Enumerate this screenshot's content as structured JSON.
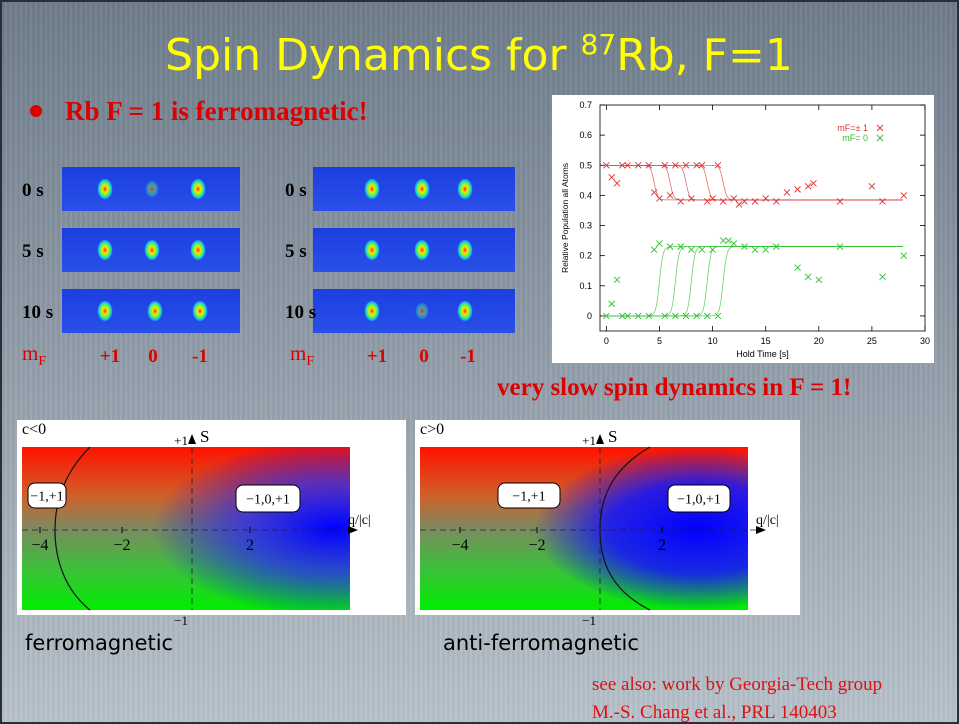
{
  "title": {
    "main": "Spin Dynamics for ",
    "isotope": "87",
    "rest": "Rb, F=1"
  },
  "bullet": "Rb F = 1 is ferromagnetic!",
  "images": [
    {
      "times": [
        "0 s",
        "5 s",
        "10 s"
      ],
      "mf_symbol": "m",
      "mf_sub": "F",
      "mf_values": [
        "+1",
        "0",
        "-1"
      ]
    },
    {
      "times": [
        "0 s",
        "5 s",
        "10 s"
      ],
      "mf_symbol": "m",
      "mf_sub": "F",
      "mf_values": [
        "+1",
        "0",
        "-1"
      ]
    }
  ],
  "plot": {
    "type": "scatter",
    "ylabel": "Relative Population all Atoms",
    "xlabel": "Hold Time [s]",
    "xlim": [
      -0.6,
      30
    ],
    "ylim": [
      -0.05,
      0.7
    ],
    "xticks": [
      0,
      5,
      10,
      15,
      20,
      25,
      30
    ],
    "yticks": [
      0,
      0.1,
      0.2,
      0.3,
      0.4,
      0.5,
      0.6,
      0.7
    ],
    "series": [
      {
        "name": "mF=± 1",
        "color": "#e03030",
        "x": [
          0,
          0.5,
          1,
          1.5,
          2,
          3,
          4,
          4.5,
          5,
          5.5,
          6,
          6.5,
          7,
          7.5,
          8,
          8.5,
          9,
          9.5,
          10,
          10.5,
          11,
          12,
          12.5,
          13,
          14,
          15,
          16,
          17,
          18,
          19,
          19.5,
          22,
          25,
          26,
          28
        ],
        "values": [
          0.5,
          0.46,
          0.44,
          0.5,
          0.5,
          0.5,
          0.5,
          0.41,
          0.39,
          0.5,
          0.4,
          0.5,
          0.38,
          0.5,
          0.39,
          0.5,
          0.5,
          0.38,
          0.39,
          0.5,
          0.38,
          0.39,
          0.37,
          0.38,
          0.38,
          0.39,
          0.38,
          0.41,
          0.42,
          0.43,
          0.44,
          0.38,
          0.43,
          0.38,
          0.4
        ],
        "fit": {
          "steps": [
            4.5,
            6,
            7.5,
            9.5,
            11
          ],
          "from": 0.5,
          "to": 0.385,
          "end": 28
        }
      },
      {
        "name": "mF= 0",
        "color": "#30c030",
        "x": [
          0,
          0.5,
          1,
          1.5,
          2,
          3,
          4,
          4.5,
          5,
          5.5,
          6,
          6.5,
          7,
          7.5,
          8,
          8.5,
          9,
          9.5,
          10,
          10.5,
          11,
          11.5,
          12,
          13,
          14,
          15,
          16,
          18,
          19,
          20,
          22,
          26,
          28
        ],
        "values": [
          0,
          0.04,
          0.12,
          0,
          0,
          0,
          0,
          0.22,
          0.24,
          0,
          0.23,
          0,
          0.23,
          0,
          0.22,
          0,
          0.22,
          0,
          0.22,
          0,
          0.25,
          0.25,
          0.24,
          0.23,
          0.22,
          0.22,
          0.23,
          0.16,
          0.13,
          0.12,
          0.23,
          0.13,
          0.2
        ],
        "fit": {
          "steps": [
            5,
            6.5,
            8,
            9.5,
            11
          ],
          "from": 0,
          "to": 0.23,
          "end": 28
        }
      }
    ]
  },
  "remark": "very slow spin dynamics in F = 1!",
  "diagrams": [
    {
      "corner": "c<0",
      "y_axis": "S",
      "y_top": "+1",
      "y_bottom": "−1",
      "x_axis": "q/|c|",
      "x_ticks": [
        "−4",
        "−2",
        "2"
      ],
      "regions": [
        "−1,+1",
        "−1,0,+1"
      ],
      "caption": "ferromagnetic"
    },
    {
      "corner": "c>0",
      "y_axis": "S",
      "y_top": "+1",
      "y_bottom": "−1",
      "x_axis": "q/|c|",
      "x_ticks": [
        "−4",
        "−2",
        "2"
      ],
      "regions": [
        "−1,+1",
        "−1,0,+1"
      ],
      "caption": "anti-ferromagnetic"
    }
  ],
  "references": [
    "see also: work by Georgia-Tech group",
    "M.-S. Chang et al., PRL 140403"
  ]
}
